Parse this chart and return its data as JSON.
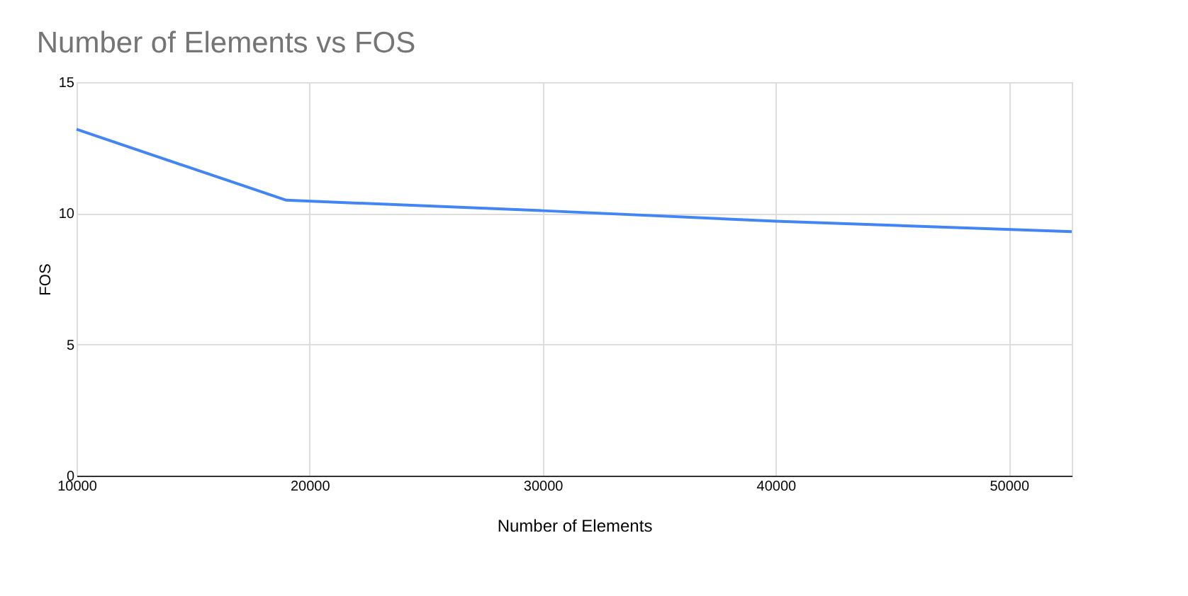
{
  "chart_data": {
    "type": "line",
    "title": "Number of Elements vs FOS",
    "xlabel": "Number of Elements",
    "ylabel": "FOS",
    "x": [
      10000,
      19000,
      30000,
      40000,
      52700
    ],
    "series": [
      {
        "color": "#4285f4",
        "values": [
          13.2,
          10.5,
          10.1,
          9.7,
          9.3
        ]
      }
    ],
    "xlim": [
      10000,
      52700
    ],
    "xticks": [
      10000,
      20000,
      30000,
      40000,
      50000
    ],
    "ylim": [
      0,
      15
    ],
    "yticks": [
      0,
      5,
      10,
      15
    ],
    "grid": true,
    "marker": "none",
    "line_style": "solid"
  }
}
